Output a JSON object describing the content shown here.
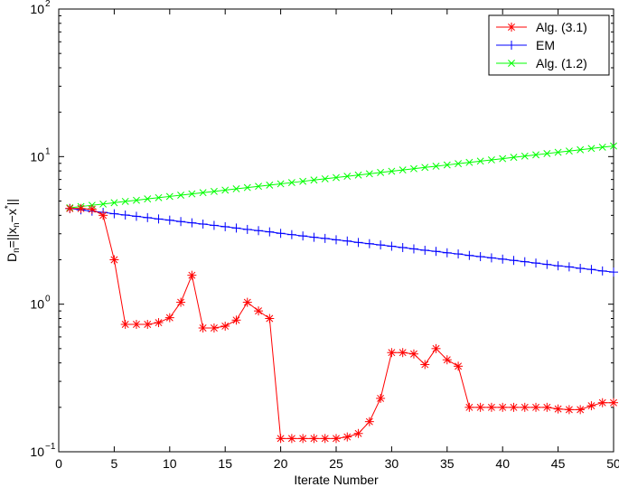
{
  "chart_data": {
    "type": "line",
    "xlabel": "Iterate Number",
    "ylabel": {
      "parts": [
        {
          "text": "D",
          "role": "normal"
        },
        {
          "text": "n",
          "role": "sub"
        },
        {
          "text": "=||x",
          "role": "normal"
        },
        {
          "text": "n",
          "role": "sub"
        },
        {
          "text": "−x",
          "role": "normal"
        },
        {
          "text": "*",
          "role": "sup"
        },
        {
          "text": "||",
          "role": "normal"
        }
      ]
    },
    "xlim": [
      0,
      50
    ],
    "ylim": [
      0.1,
      100
    ],
    "yscale": "log",
    "xticks": [
      0,
      5,
      10,
      15,
      20,
      25,
      30,
      35,
      40,
      45,
      50
    ],
    "yticks": [
      {
        "value": 0.1,
        "base": "10",
        "exp": "−1"
      },
      {
        "value": 1,
        "base": "10",
        "exp": "0"
      },
      {
        "value": 10,
        "base": "10",
        "exp": "1"
      },
      {
        "value": 100,
        "base": "10",
        "exp": "2"
      }
    ],
    "legend_position": "top-right",
    "series": [
      {
        "name": "Alg. (3.1)",
        "color": "#ff0000",
        "marker": "asterisk",
        "x": [
          1,
          2,
          3,
          4,
          5,
          6,
          7,
          8,
          9,
          10,
          11,
          12,
          13,
          14,
          15,
          16,
          17,
          18,
          19,
          20,
          21,
          22,
          23,
          24,
          25,
          26,
          27,
          28,
          29,
          30,
          31,
          32,
          33,
          34,
          35,
          36,
          37,
          38,
          39,
          40,
          41,
          42,
          43,
          44,
          45,
          46,
          47,
          48,
          49,
          50
        ],
        "y": [
          4.45,
          4.45,
          4.4,
          4.0,
          2.0,
          0.73,
          0.73,
          0.73,
          0.75,
          0.81,
          1.03,
          1.57,
          0.69,
          0.69,
          0.71,
          0.78,
          1.03,
          0.9,
          0.8,
          0.123,
          0.123,
          0.123,
          0.123,
          0.123,
          0.123,
          0.126,
          0.133,
          0.16,
          0.23,
          0.47,
          0.47,
          0.46,
          0.39,
          0.5,
          0.42,
          0.38,
          0.2,
          0.2,
          0.2,
          0.2,
          0.2,
          0.2,
          0.2,
          0.2,
          0.195,
          0.193,
          0.193,
          0.205,
          0.215,
          0.215
        ]
      },
      {
        "name": "EM",
        "color": "#0000ff",
        "marker": "plus",
        "x": [
          1,
          2,
          3,
          4,
          5,
          6,
          7,
          8,
          9,
          10,
          11,
          12,
          13,
          14,
          15,
          16,
          17,
          18,
          19,
          20,
          21,
          22,
          23,
          24,
          25,
          26,
          27,
          28,
          29,
          30,
          31,
          32,
          33,
          34,
          35,
          36,
          37,
          38,
          39,
          40,
          41,
          42,
          43,
          44,
          45,
          46,
          47,
          48,
          49,
          50
        ],
        "y": [
          4.45,
          4.36,
          4.27,
          4.19,
          4.1,
          4.02,
          3.94,
          3.86,
          3.78,
          3.71,
          3.63,
          3.56,
          3.49,
          3.42,
          3.35,
          3.28,
          3.21,
          3.15,
          3.09,
          3.02,
          2.96,
          2.9,
          2.84,
          2.79,
          2.73,
          2.68,
          2.62,
          2.57,
          2.52,
          2.47,
          2.42,
          2.37,
          2.32,
          2.28,
          2.23,
          2.19,
          2.14,
          2.1,
          2.06,
          2.02,
          1.98,
          1.94,
          1.9,
          1.86,
          1.82,
          1.79,
          1.75,
          1.72,
          1.68,
          1.65
        ]
      },
      {
        "name": "Alg. (1.2)",
        "color": "#00ff00",
        "marker": "x",
        "x": [
          1,
          2,
          3,
          4,
          5,
          6,
          7,
          8,
          9,
          10,
          11,
          12,
          13,
          14,
          15,
          16,
          17,
          18,
          19,
          20,
          21,
          22,
          23,
          24,
          25,
          26,
          27,
          28,
          29,
          30,
          31,
          32,
          33,
          34,
          35,
          36,
          37,
          38,
          39,
          40,
          41,
          42,
          43,
          44,
          45,
          46,
          47,
          48,
          49,
          50
        ],
        "y": [
          4.5,
          4.59,
          4.68,
          4.77,
          4.87,
          4.97,
          5.06,
          5.17,
          5.27,
          5.37,
          5.48,
          5.59,
          5.7,
          5.81,
          5.93,
          6.05,
          6.17,
          6.29,
          6.41,
          6.54,
          6.67,
          6.8,
          6.94,
          7.07,
          7.21,
          7.36,
          7.5,
          7.65,
          7.81,
          7.96,
          8.12,
          8.28,
          8.45,
          8.61,
          8.78,
          8.96,
          9.14,
          9.32,
          9.5,
          9.69,
          9.89,
          10.08,
          10.28,
          10.49,
          10.7,
          10.91,
          11.13,
          11.35,
          11.58,
          11.8
        ]
      }
    ]
  }
}
